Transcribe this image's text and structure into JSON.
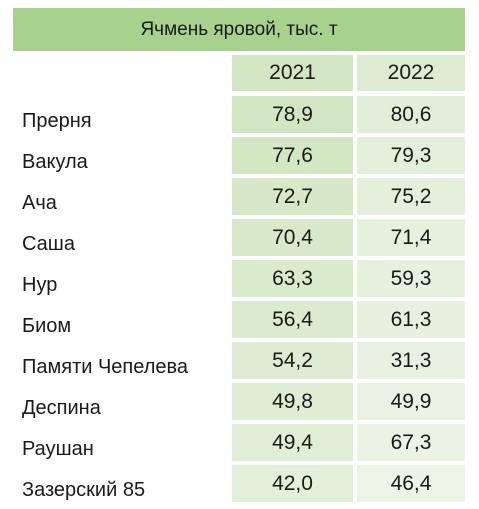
{
  "table": {
    "title": "Ячмень яровой, тыс. т",
    "columns": [
      "2021",
      "2022"
    ],
    "rows": [
      {
        "name": "Прерня",
        "v2021": "78,9",
        "v2022": "80,6"
      },
      {
        "name": "Вакула",
        "v2021": "77,6",
        "v2022": "79,3"
      },
      {
        "name": "Ача",
        "v2021": "72,7",
        "v2022": "75,2"
      },
      {
        "name": "Саша",
        "v2021": "70,4",
        "v2022": "71,4"
      },
      {
        "name": "Нур",
        "v2021": "63,3",
        "v2022": "59,3"
      },
      {
        "name": "Биом",
        "v2021": "56,4",
        "v2022": "61,3"
      },
      {
        "name": "Памяти Чепелева",
        "v2021": "54,2",
        "v2022": "31,3"
      },
      {
        "name": "Деспина",
        "v2021": "49,8",
        "v2022": "49,9"
      },
      {
        "name": "Раушан",
        "v2021": "49,4",
        "v2022": "67,3"
      },
      {
        "name": "Зазерский 85",
        "v2021": "42,0",
        "v2022": "46,4"
      }
    ]
  },
  "colors": {
    "header": "#a9d18e",
    "col2021_light": "#d2e6c3",
    "col2022_light": "#e6f0de"
  }
}
